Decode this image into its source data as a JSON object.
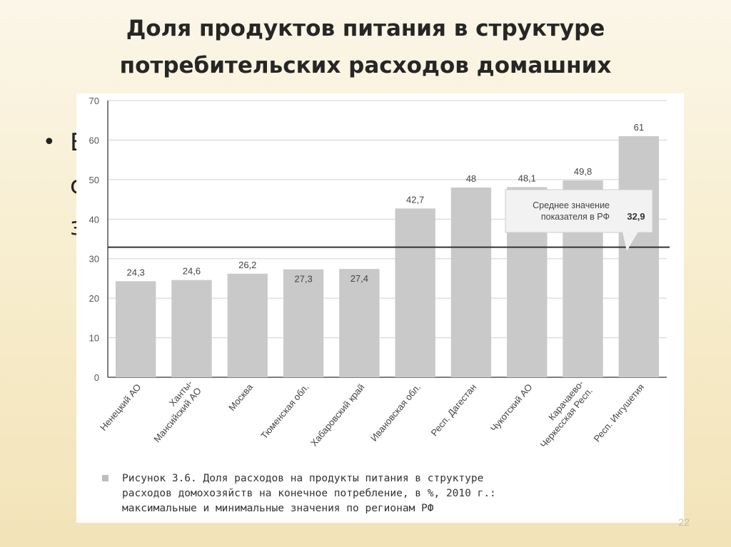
{
  "slide": {
    "title_lines": [
      "Доля продуктов питания в структуре",
      "потребительских расходов домашних"
    ],
    "bullet_symbol": "•",
    "bullet_fragments": [
      "В",
      "с",
      "з"
    ],
    "slide_number": "22"
  },
  "chart_data": {
    "type": "bar",
    "categories": [
      "Ненецкий АО",
      "Ханты-|Мансийский АО",
      "Москва",
      "Тюменская обл.",
      "Хабаровский край",
      "Ивановская обл.",
      "Респ. Дагестан",
      "Чукотский АО",
      "Карачаево-|Черкесская Респ.",
      "Респ. Ингушетия"
    ],
    "values": [
      24.3,
      24.6,
      26.2,
      27.3,
      27.4,
      42.7,
      48,
      48.1,
      49.8,
      61
    ],
    "value_labels": [
      "24,3",
      "24,6",
      "26,2",
      "27,3",
      "27,4",
      "42,7",
      "48",
      "48,1",
      "49,8",
      "61"
    ],
    "yticks": [
      "0",
      "10",
      "20",
      "30",
      "40",
      "50",
      "60",
      "70"
    ],
    "ylim": [
      0,
      70
    ],
    "reference_line": {
      "value": 32.9,
      "label_lines": [
        "Среднее значение",
        "показателя в РФ"
      ],
      "value_label": "32,9"
    },
    "bar_color": "#c9c9c9",
    "grid": true,
    "caption_lines": [
      "Рисунок 3.6. Доля расходов на продукты питания в структуре",
      "расходов домохозяйств на конечное потребление, в %, 2010 г.:",
      "максимальные и минимальные значения по регионам РФ"
    ]
  }
}
